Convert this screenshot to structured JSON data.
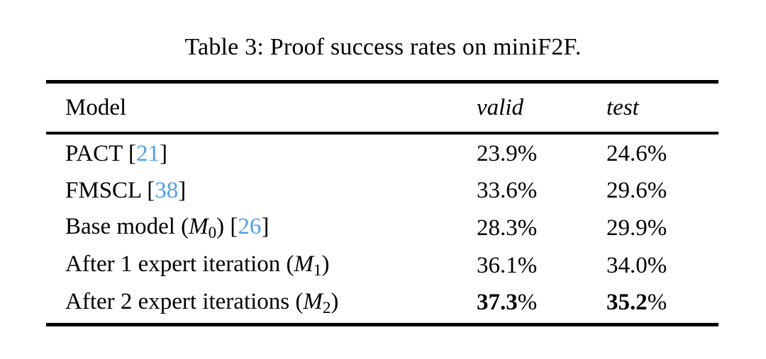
{
  "caption": "Table 3: Proof success rates on miniF2F.",
  "colors": {
    "citation": "#4da0ee",
    "text": "#000000",
    "rule": "#000000"
  },
  "table": {
    "columns": [
      "Model",
      "valid",
      "test"
    ],
    "rows": [
      {
        "pre": "PACT",
        "math_symbol": null,
        "math_subscript": null,
        "cite": "21",
        "valid": "23.9%",
        "test": "24.6%",
        "bold": false
      },
      {
        "pre": "FMSCL",
        "math_symbol": null,
        "math_subscript": null,
        "cite": "38",
        "valid": "33.6%",
        "test": "29.6%",
        "bold": false
      },
      {
        "pre": "Base model",
        "math_symbol": "M",
        "math_subscript": "0",
        "cite": "26",
        "valid": "28.3%",
        "test": "29.9%",
        "bold": false
      },
      {
        "pre": "After 1 expert iteration",
        "math_symbol": "M",
        "math_subscript": "1",
        "cite": null,
        "valid": "36.1%",
        "test": "34.0%",
        "bold": false
      },
      {
        "pre": "After 2 expert iterations",
        "math_symbol": "M",
        "math_subscript": "2",
        "cite": null,
        "valid": "37.3%",
        "test": "35.2%",
        "bold": true
      }
    ]
  }
}
